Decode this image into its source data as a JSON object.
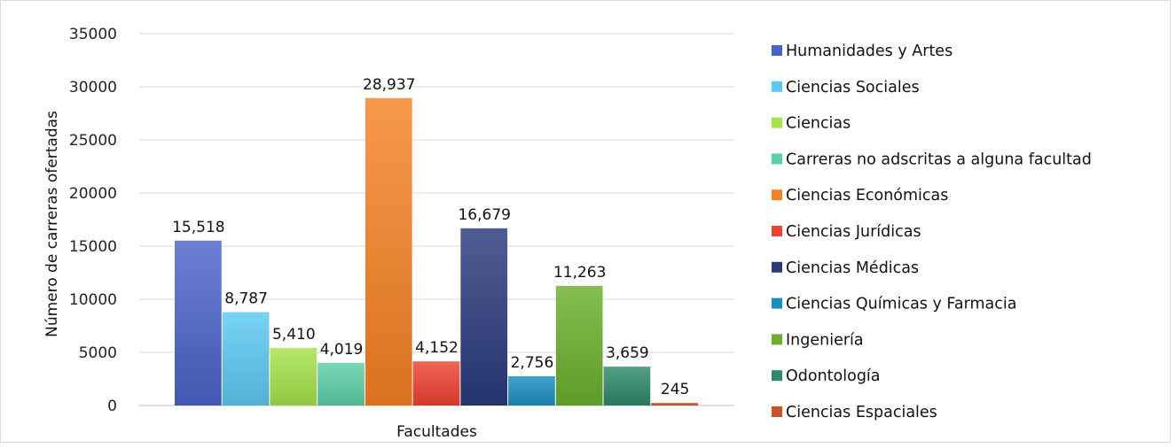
{
  "chart_data": {
    "type": "bar",
    "xlabel": "Facultades",
    "ylabel": "Número de carreras ofertadas",
    "ylim": [
      0,
      35000
    ],
    "yticks": [
      "0",
      "5000",
      "10000",
      "15000",
      "20000",
      "25000",
      "30000",
      "35000"
    ],
    "grid": true,
    "legend_position": "right",
    "series": [
      {
        "name": "Humanidades y Artes",
        "value": 15518,
        "label": "15,518",
        "color": "#4a63c9"
      },
      {
        "name": "Ciencias Sociales",
        "value": 8787,
        "label": "8,787",
        "color": "#5cc9f2"
      },
      {
        "name": "Ciencias",
        "value": 5410,
        "label": "5,410",
        "color": "#a6e24a"
      },
      {
        "name": "Carreras no adscritas a alguna facultad",
        "value": 4019,
        "label": "4,019",
        "color": "#5ccfa8"
      },
      {
        "name": "Ciencias Económicas",
        "value": 28937,
        "label": "28,937",
        "color": "#f58224"
      },
      {
        "name": "Ciencias Jurídicas",
        "value": 4152,
        "label": "4,152",
        "color": "#ee4230"
      },
      {
        "name": "Ciencias Médicas",
        "value": 16679,
        "label": "16,679",
        "color": "#2a3a7c"
      },
      {
        "name": "Ciencias Químicas y Farmacia",
        "value": 2756,
        "label": "2,756",
        "color": "#1a8fc4"
      },
      {
        "name": "Ingeniería",
        "value": 11263,
        "label": "11,263",
        "color": "#6ab02c"
      },
      {
        "name": "Odontología",
        "value": 3659,
        "label": "3,659",
        "color": "#2e8a6a"
      },
      {
        "name": "Ciencias Espaciales",
        "value": 245,
        "label": "245",
        "color": "#c8522a"
      }
    ]
  }
}
